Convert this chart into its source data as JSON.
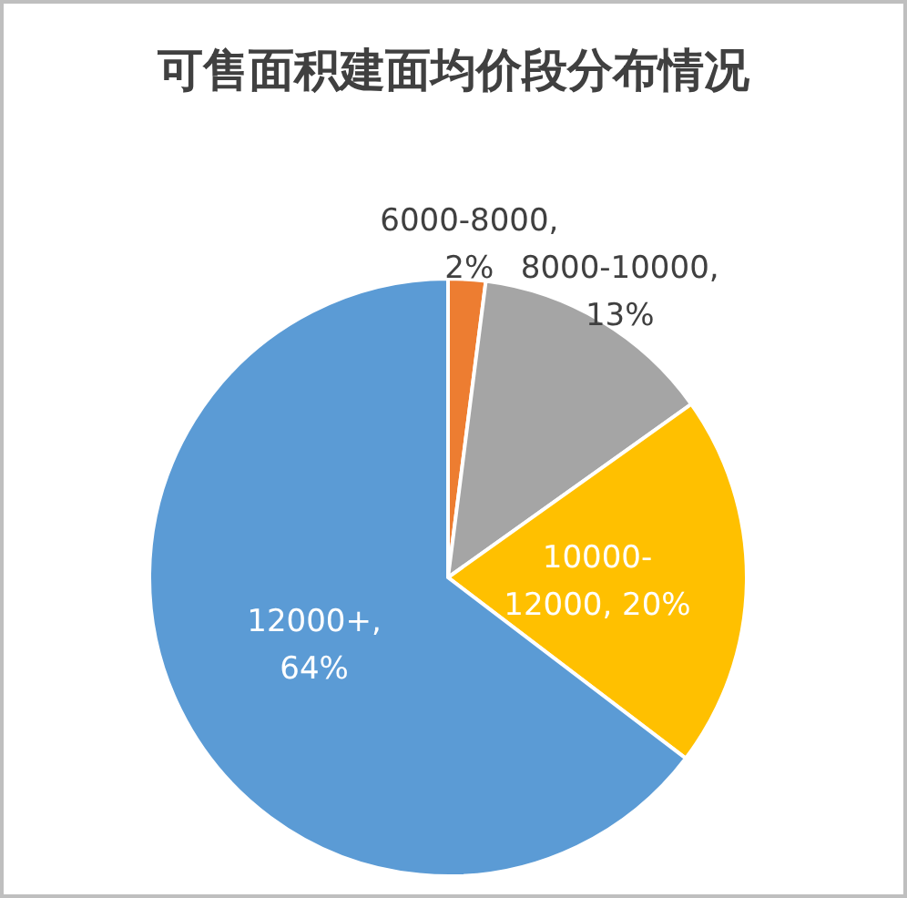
{
  "chart_data": {
    "type": "pie",
    "title": "可售面积建面均价段分布情况",
    "categories": [
      "6000-8000",
      "8000-10000",
      "10000-12000",
      "12000+"
    ],
    "values": [
      2,
      13,
      20,
      64
    ],
    "value_labels": [
      ", 2%",
      ", 13%",
      ", 20%",
      ", 64%"
    ],
    "colors": [
      "#ed7d31",
      "#a5a5a5",
      "#ffc000",
      "#5b9bd5"
    ]
  }
}
